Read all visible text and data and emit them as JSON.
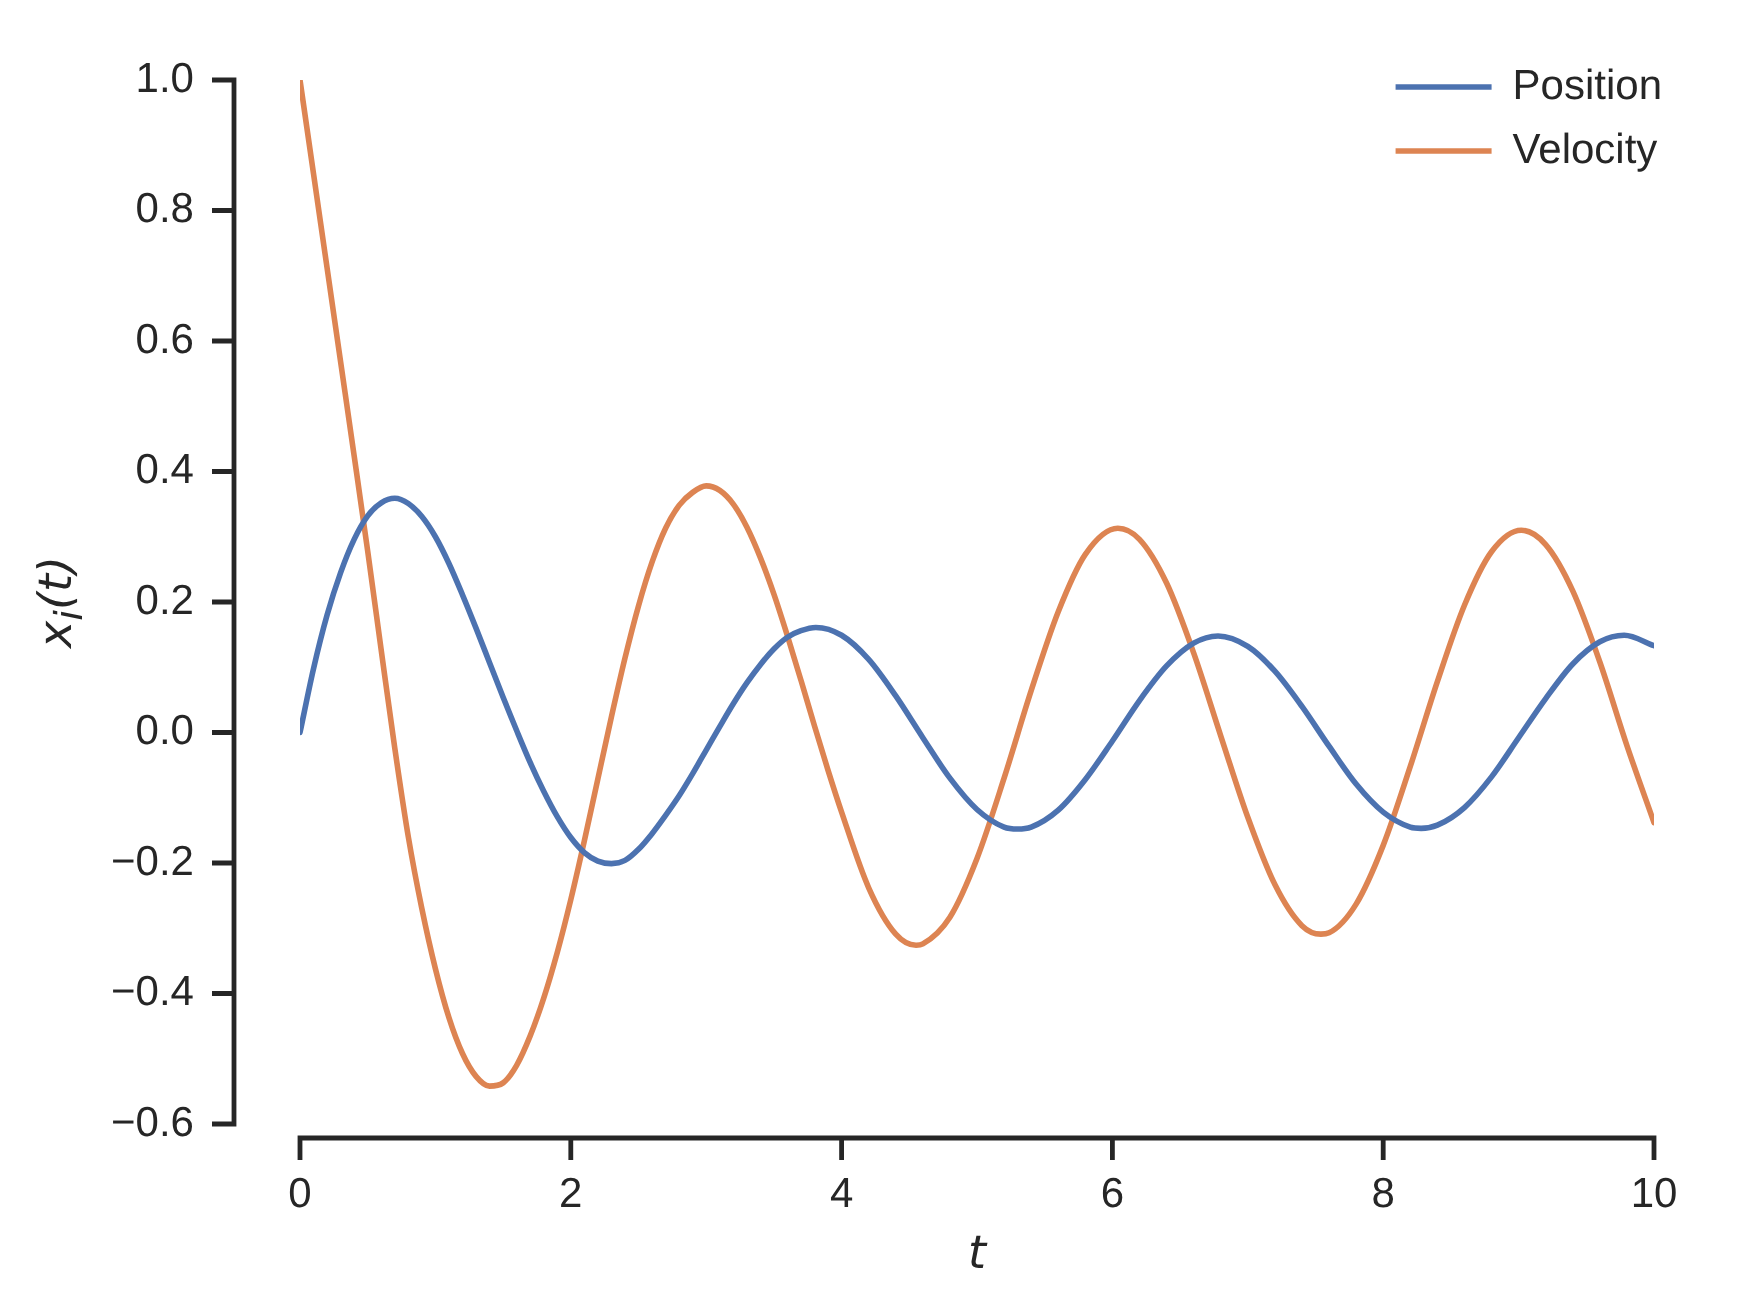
{
  "chart_data": {
    "type": "line",
    "xlabel": "t",
    "ylabel": "x$_{i}$(t)",
    "xlim": [
      0,
      10
    ],
    "xticks": [
      0,
      2,
      4,
      6,
      8,
      10
    ],
    "ylim": [
      -0.6,
      1
    ],
    "yticks": [
      {
        "value": -0.6,
        "label": "−0.6"
      },
      {
        "value": -0.4,
        "label": "−0.4"
      },
      {
        "value": -0.2,
        "label": "−0.2"
      },
      {
        "value": 0,
        "label": "0.0"
      },
      0.2,
      0.4,
      0.6,
      0.8,
      {
        "value": 1,
        "label": "1.0"
      }
    ],
    "legend": "top right",
    "series": [
      {
        "name": "Position",
        "color": "#4c72b0",
        "x": [
          0,
          0.1,
          0.2,
          0.3,
          0.4,
          0.5,
          0.6,
          0.7,
          0.8,
          0.9,
          1.0,
          1.1,
          1.2,
          1.3,
          1.4,
          1.5,
          1.6,
          1.7,
          1.8,
          1.9,
          2.0,
          2.1,
          2.2,
          2.3,
          2.4,
          2.5,
          2.6,
          2.7,
          2.8,
          2.9,
          3.0,
          3.1,
          3.2,
          3.3,
          3.4,
          3.5,
          3.6,
          3.7,
          3.81,
          4.0,
          4.2,
          4.4,
          4.6,
          4.8,
          5.0,
          5.2,
          5.3,
          5.4,
          5.6,
          5.8,
          6.0,
          6.2,
          6.4,
          6.6,
          6.78,
          7.0,
          7.2,
          7.4,
          7.6,
          7.8,
          8.0,
          8.2,
          8.28,
          8.4,
          8.6,
          8.8,
          9.0,
          9.2,
          9.4,
          9.6,
          9.78,
          10
        ],
        "values": [
          0,
          0.098,
          0.18,
          0.245,
          0.296,
          0.332,
          0.352,
          0.359,
          0.351,
          0.331,
          0.3,
          0.259,
          0.211,
          0.16,
          0.107,
          0.054,
          0.003,
          -0.046,
          -0.09,
          -0.129,
          -0.161,
          -0.184,
          -0.197,
          -0.201,
          -0.196,
          -0.179,
          -0.155,
          -0.127,
          -0.097,
          -0.063,
          -0.027,
          0.009,
          0.044,
          0.076,
          0.104,
          0.128,
          0.146,
          0.156,
          0.161,
          0.149,
          0.112,
          0.056,
          -0.008,
          -0.07,
          -0.118,
          -0.145,
          -0.148,
          -0.145,
          -0.119,
          -0.072,
          -0.013,
          0.049,
          0.102,
          0.137,
          0.148,
          0.132,
          0.094,
          0.04,
          -0.021,
          -0.079,
          -0.122,
          -0.145,
          -0.147,
          -0.142,
          -0.115,
          -0.068,
          -0.008,
          0.052,
          0.105,
          0.139,
          0.149,
          0.133
        ]
      },
      {
        "name": "Velocity",
        "color": "#dd8452",
        "x": [
          0,
          0.1,
          0.2,
          0.3,
          0.4,
          0.5,
          0.6,
          0.7,
          0.8,
          0.9,
          1.0,
          1.1,
          1.2,
          1.3,
          1.4,
          1.5,
          1.6,
          1.7,
          1.8,
          1.9,
          2.0,
          2.1,
          2.2,
          2.3,
          2.4,
          2.5,
          2.6,
          2.7,
          2.8,
          2.9,
          3.0,
          3.1,
          3.2,
          3.3,
          3.4,
          3.5,
          3.6,
          3.7,
          3.8,
          3.9,
          4.0,
          4.2,
          4.4,
          4.55,
          4.6,
          4.8,
          5.0,
          5.2,
          5.4,
          5.6,
          5.8,
          6.04,
          6.2,
          6.4,
          6.6,
          6.8,
          7.0,
          7.2,
          7.4,
          7.54,
          7.6,
          7.8,
          8.0,
          8.2,
          8.4,
          8.6,
          8.8,
          9.02,
          9.2,
          9.4,
          9.6,
          9.8,
          10
        ],
        "values": [
          1.0,
          0.856,
          0.712,
          0.568,
          0.424,
          0.278,
          0.126,
          -0.024,
          -0.16,
          -0.27,
          -0.362,
          -0.437,
          -0.492,
          -0.527,
          -0.542,
          -0.537,
          -0.51,
          -0.465,
          -0.407,
          -0.337,
          -0.256,
          -0.166,
          -0.071,
          0.024,
          0.114,
          0.194,
          0.261,
          0.313,
          0.348,
          0.368,
          0.378,
          0.371,
          0.35,
          0.315,
          0.268,
          0.212,
          0.148,
          0.08,
          0.01,
          -0.058,
          -0.122,
          -0.238,
          -0.309,
          -0.326,
          -0.324,
          -0.283,
          -0.193,
          -0.07,
          0.064,
          0.185,
          0.273,
          0.313,
          0.296,
          0.229,
          0.122,
          -0.005,
          -0.13,
          -0.233,
          -0.296,
          -0.309,
          -0.307,
          -0.263,
          -0.173,
          -0.052,
          0.078,
          0.195,
          0.277,
          0.31,
          0.288,
          0.217,
          0.108,
          -0.02,
          -0.138
        ]
      }
    ]
  }
}
